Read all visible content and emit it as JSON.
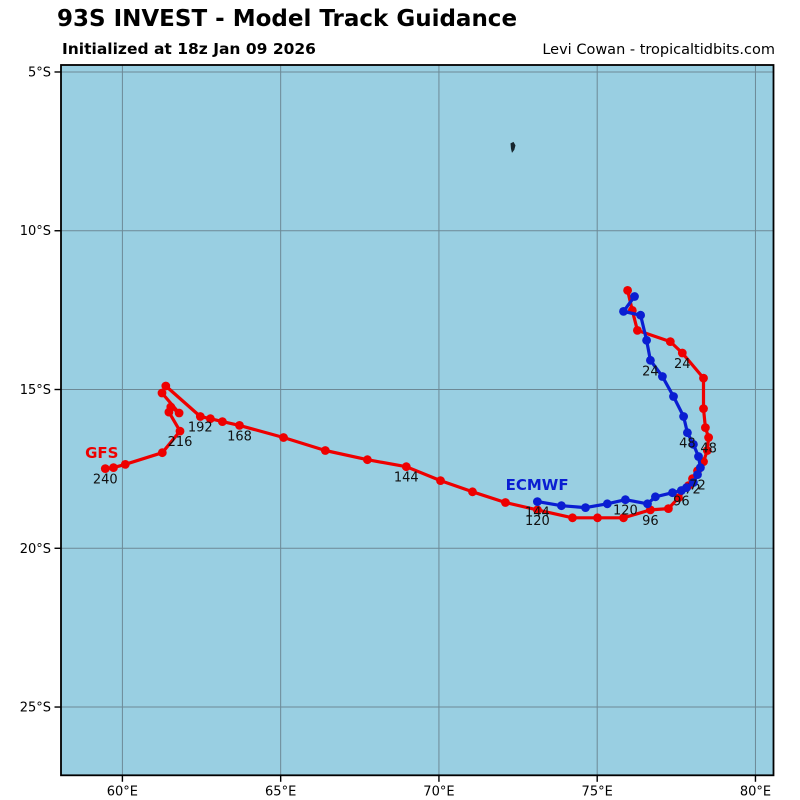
{
  "header": {
    "title": "93S INVEST - Model Track Guidance",
    "subtitle": "Initialized at 18z Jan 09 2026",
    "credit": "Levi Cowan - tropicaltidbits.com"
  },
  "chart_data": {
    "type": "line",
    "title": "93S INVEST - Model Track Guidance",
    "subtitle": "Initialized at 18z Jan 09 2026",
    "credit": "Levi Cowan - tropicaltidbits.com",
    "grid": true,
    "lon_range": [
      58.06,
      80.57
    ],
    "lat_range": [
      4.78,
      27.15
    ],
    "x_ticks": [
      {
        "lon": 60,
        "label": "60°E"
      },
      {
        "lon": 65,
        "label": "65°E"
      },
      {
        "lon": 70,
        "label": "70°E"
      },
      {
        "lon": 75,
        "label": "75°E"
      },
      {
        "lon": 80,
        "label": "80°E"
      }
    ],
    "y_ticks": [
      {
        "lat": 5,
        "label": "5°S"
      },
      {
        "lat": 10,
        "label": "10°S"
      },
      {
        "lat": 15,
        "label": "15°S"
      },
      {
        "lat": 20,
        "label": "20°S"
      },
      {
        "lat": 25,
        "label": "25°S"
      }
    ],
    "colors": {
      "ocean": "#99cfe2",
      "grid": "#6d8996",
      "frame": "#000000",
      "hour_label": "#111111",
      "island": "#16262e"
    },
    "island": {
      "name": "chagos-archipelago",
      "lon": 72.34,
      "lat": 7.39
    },
    "series": [
      {
        "name": "GFS",
        "color": "#ee0000",
        "label_lon": 59.35,
        "label_lat": 17.0,
        "hour_labels_shown": [
          24,
          48,
          72,
          96,
          120,
          144,
          168,
          192,
          216,
          240
        ],
        "points": [
          [
            75.96,
            11.88,
            null
          ],
          [
            76.11,
            12.51,
            null
          ],
          [
            76.27,
            13.14,
            null
          ],
          [
            77.31,
            13.49,
            null
          ],
          [
            77.69,
            13.85,
            "24"
          ],
          [
            78.36,
            14.64,
            null
          ],
          [
            78.36,
            15.6,
            null
          ],
          [
            78.42,
            16.2,
            null
          ],
          [
            78.52,
            16.51,
            "48"
          ],
          [
            78.48,
            16.92,
            null
          ],
          [
            78.36,
            17.27,
            null
          ],
          [
            78.17,
            17.56,
            null
          ],
          [
            78.01,
            17.81,
            "72"
          ],
          [
            77.88,
            18.03,
            null
          ],
          [
            77.57,
            18.41,
            null
          ],
          [
            77.25,
            18.75,
            null
          ],
          [
            76.68,
            18.79,
            "96"
          ],
          [
            75.83,
            19.04,
            null
          ],
          [
            75.01,
            19.04,
            null
          ],
          [
            74.22,
            19.04,
            null
          ],
          [
            73.11,
            18.79,
            "120"
          ],
          [
            72.1,
            18.56,
            null
          ],
          [
            71.06,
            18.22,
            null
          ],
          [
            70.05,
            17.87,
            null
          ],
          [
            68.97,
            17.43,
            "144"
          ],
          [
            67.74,
            17.21,
            null
          ],
          [
            66.41,
            16.92,
            null
          ],
          [
            65.09,
            16.51,
            null
          ],
          [
            63.7,
            16.13,
            "168"
          ],
          [
            63.16,
            16.01,
            null
          ],
          [
            62.78,
            15.92,
            null
          ],
          [
            62.46,
            15.85,
            "192"
          ],
          [
            61.37,
            14.89,
            null
          ],
          [
            61.25,
            15.11,
            null
          ],
          [
            61.79,
            15.74,
            null
          ],
          [
            61.53,
            15.55,
            null
          ],
          [
            61.47,
            15.71,
            null
          ],
          [
            61.82,
            16.31,
            "216"
          ],
          [
            61.26,
            16.99,
            null
          ],
          [
            60.09,
            17.36,
            null
          ],
          [
            59.72,
            17.46,
            null
          ],
          [
            59.46,
            17.49,
            "240"
          ]
        ]
      },
      {
        "name": "ECMWF",
        "color": "#0a1ed2",
        "label_lon": 73.1,
        "label_lat": 18.01,
        "hour_labels_shown": [
          24,
          48,
          72,
          96,
          120,
          144
        ],
        "points": [
          [
            76.18,
            12.07,
            null
          ],
          [
            75.83,
            12.54,
            null
          ],
          [
            76.37,
            12.66,
            null
          ],
          [
            76.56,
            13.45,
            null
          ],
          [
            76.68,
            14.08,
            "24"
          ],
          [
            77.06,
            14.59,
            null
          ],
          [
            77.41,
            15.22,
            null
          ],
          [
            77.73,
            15.85,
            null
          ],
          [
            77.85,
            16.36,
            "48"
          ],
          [
            78.04,
            16.73,
            null
          ],
          [
            78.2,
            17.11,
            null
          ],
          [
            78.26,
            17.46,
            null
          ],
          [
            78.17,
            17.68,
            "72"
          ],
          [
            78.04,
            17.93,
            null
          ],
          [
            77.82,
            18.09,
            null
          ],
          [
            77.66,
            18.18,
            "96"
          ],
          [
            77.38,
            18.25,
            null
          ],
          [
            76.84,
            18.38,
            null
          ],
          [
            76.59,
            18.6,
            null
          ],
          [
            75.89,
            18.47,
            "120"
          ],
          [
            75.32,
            18.6,
            null
          ],
          [
            74.63,
            18.72,
            null
          ],
          [
            73.87,
            18.66,
            null
          ],
          [
            73.11,
            18.53,
            "144"
          ]
        ]
      }
    ]
  }
}
